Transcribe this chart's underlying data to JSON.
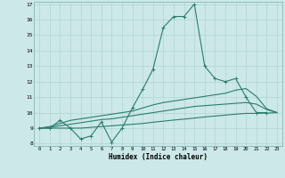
{
  "x": [
    0,
    1,
    2,
    3,
    4,
    5,
    6,
    7,
    8,
    9,
    10,
    11,
    12,
    13,
    14,
    15,
    16,
    17,
    18,
    19,
    20,
    21,
    22,
    23
  ],
  "line_main": [
    9.0,
    9.0,
    9.5,
    9.0,
    8.3,
    8.5,
    9.4,
    8.1,
    9.0,
    10.3,
    11.5,
    12.8,
    15.5,
    16.2,
    16.2,
    17.0,
    13.0,
    12.2,
    12.0,
    12.2,
    11.0,
    10.0,
    10.0,
    null
  ],
  "line_smooth1": [
    9.0,
    9.1,
    9.3,
    9.5,
    9.6,
    9.7,
    9.8,
    9.9,
    10.0,
    10.1,
    10.3,
    10.5,
    10.65,
    10.75,
    10.85,
    10.95,
    11.05,
    11.15,
    11.25,
    11.45,
    11.55,
    11.05,
    10.25,
    10.0
  ],
  "line_smooth2": [
    9.0,
    9.05,
    9.15,
    9.25,
    9.35,
    9.45,
    9.55,
    9.6,
    9.7,
    9.8,
    9.9,
    10.0,
    10.1,
    10.2,
    10.3,
    10.4,
    10.45,
    10.5,
    10.55,
    10.6,
    10.65,
    10.55,
    10.2,
    10.0
  ],
  "line_smooth3": [
    9.0,
    9.0,
    9.0,
    9.0,
    9.0,
    9.05,
    9.1,
    9.15,
    9.2,
    9.25,
    9.3,
    9.38,
    9.45,
    9.52,
    9.58,
    9.65,
    9.72,
    9.78,
    9.84,
    9.9,
    9.95,
    9.95,
    9.97,
    10.0
  ],
  "color": "#2a7d6e",
  "bg_color": "#cce8e8",
  "grid_color": "#aacfcf",
  "xlabel": "Humidex (Indice chaleur)",
  "ylim": [
    8,
    17
  ],
  "xlim": [
    -0.5,
    23.5
  ],
  "yticks": [
    8,
    9,
    10,
    11,
    12,
    13,
    14,
    15,
    16,
    17
  ],
  "xticks": [
    0,
    1,
    2,
    3,
    4,
    5,
    6,
    7,
    8,
    9,
    10,
    11,
    12,
    13,
    14,
    15,
    16,
    17,
    18,
    19,
    20,
    21,
    22,
    23
  ]
}
